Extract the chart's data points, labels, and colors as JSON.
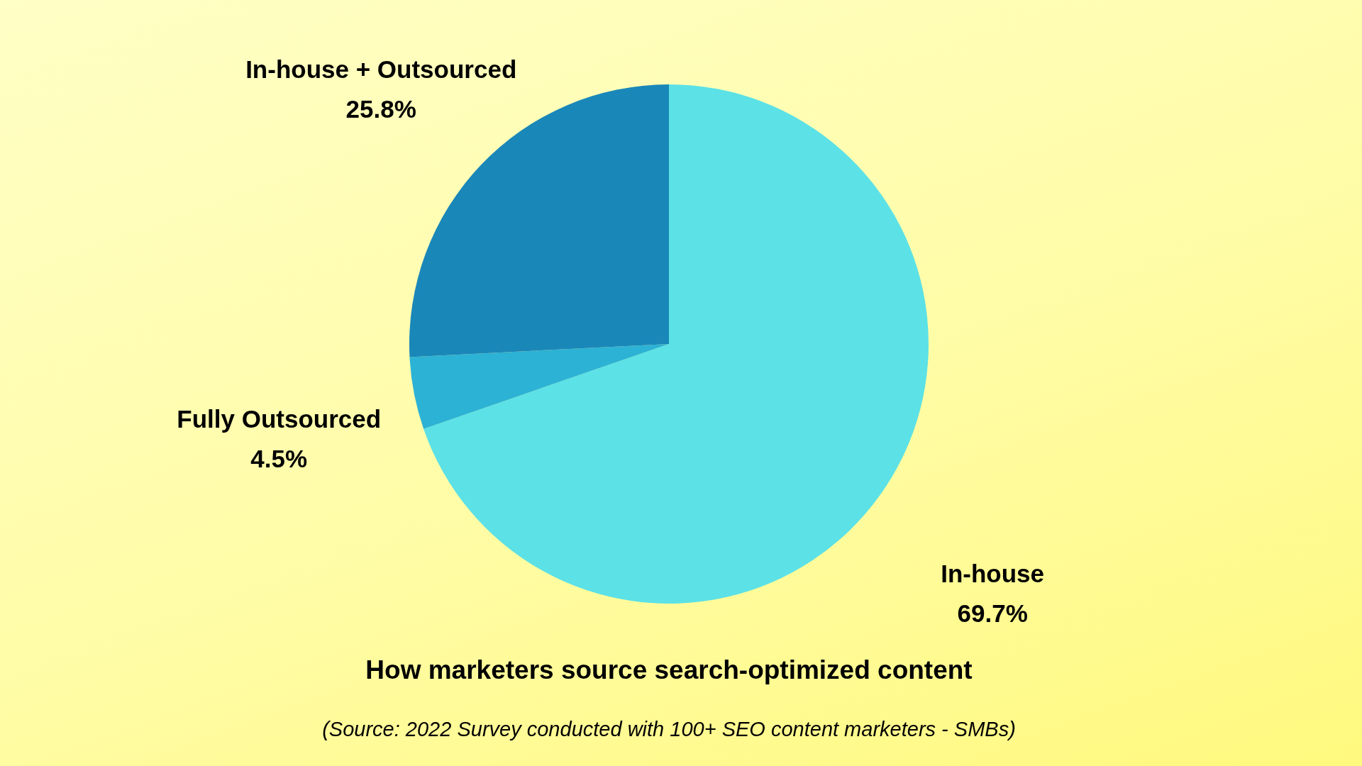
{
  "chart_data": {
    "type": "pie",
    "title": "How marketers source search-optimized content",
    "categories": [
      "In-house",
      "Fully Outsourced",
      "In-house + Outsourced"
    ],
    "values": [
      69.7,
      4.5,
      25.8
    ],
    "colors": [
      "#5ce1e6",
      "#2cb2d5",
      "#1a87b9"
    ],
    "value_labels": [
      "69.7%",
      "4.5%",
      "25.8%"
    ],
    "annotations": [
      "(Source: 2022 Survey conducted with 100+ SEO content marketers - SMBs)"
    ]
  }
}
